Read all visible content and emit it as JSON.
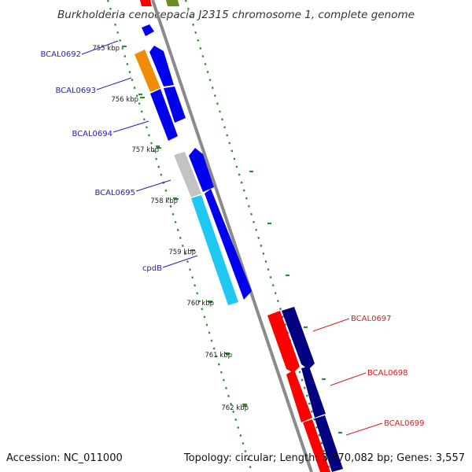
{
  "title": "Burkholderia cenocepacia J2315 chromosome 1, complete genome",
  "footer": {
    "accession": "Accession: NC_011000",
    "stats": "Topology: circular; Length: 3,870,082 bp; Genes: 3,557"
  },
  "ticks": [
    "755 kbp",
    "756 kbp",
    "757 kbp",
    "758 kbp",
    "759 kbp",
    "760 kbp",
    "761 kbp",
    "762 kbp"
  ],
  "genes_forward": [
    "BCAL0692",
    "BCAL0693",
    "BCAL0694",
    "BCAL0695",
    "cpdB"
  ],
  "genes_reverse": [
    "BCAL0697",
    "BCAL0698",
    "BCAL0699"
  ],
  "colors": {
    "blue_gene": "#0000ee",
    "cyan_gene": "#1ec8f0",
    "orange_gene": "#f08c0a",
    "grey_gene": "#c3c3c3",
    "red_gene": "#ff0000",
    "navy_gene": "#000080",
    "backbone": "#8a8a8a",
    "gc_dots": "#2e8b2e",
    "label_blue": "#1f1fbf",
    "label_red": "#d42020"
  }
}
